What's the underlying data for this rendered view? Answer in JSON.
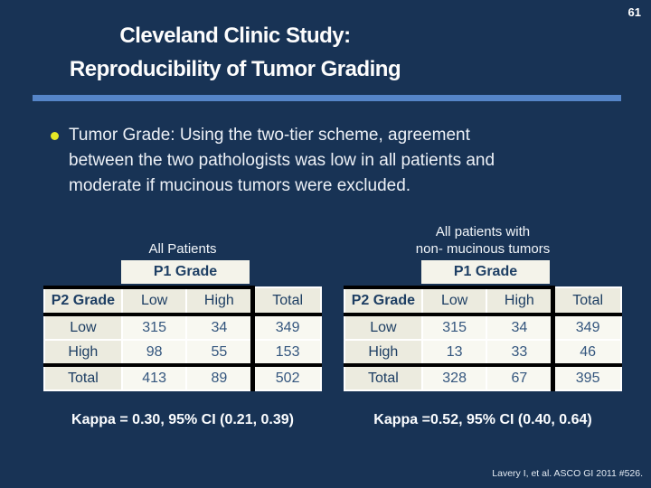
{
  "slide": {
    "page_number": "61",
    "title_lines": [
      "Cleveland Clinic Study:",
      "Reproducibility of Tumor Grading"
    ],
    "bullet_lines": [
      "Tumor Grade: Using the two-tier scheme, agreement",
      "between the two pathologists was low in all patients and",
      "moderate if mucinous tumors were excluded."
    ],
    "citation": "Lavery I, et al. ASCO GI 2011 #526."
  },
  "colors": {
    "background": "#183355",
    "accent_bar": "#5585c8",
    "bullet_dot": "#e5e926",
    "body_text": "#edf1f7",
    "cell_label_bg": "#ecebdf",
    "cell_data_bg": "#f8f8f1",
    "span_cell_bg": "#f4f3ea",
    "table_text": "#1d3e63",
    "table_number_text": "#34567e",
    "border_black": "#000000",
    "cell_border_white": "#ffffff"
  },
  "tables": [
    {
      "title_lines": [
        "All Patients"
      ],
      "span_header": "P1 Grade",
      "columns": [
        "P2 Grade",
        "Low",
        "High",
        "Total"
      ],
      "rows": [
        {
          "label": "Low",
          "low": "315",
          "high": "34",
          "total": "349"
        },
        {
          "label": "High",
          "low": "98",
          "high": "55",
          "total": "153"
        },
        {
          "label": "Total",
          "low": "413",
          "high": "89",
          "total": "502"
        }
      ],
      "kappa": "Kappa = 0.30, 95% CI (0.21, 0.39)"
    },
    {
      "title_lines": [
        "All patients with",
        "non- mucinous tumors"
      ],
      "span_header": "P1 Grade",
      "columns": [
        "P2 Grade",
        "Low",
        "High",
        "Total"
      ],
      "rows": [
        {
          "label": "Low",
          "low": "315",
          "high": "34",
          "total": "349"
        },
        {
          "label": "High",
          "low": "13",
          "high": "33",
          "total": "46"
        },
        {
          "label": "Total",
          "low": "328",
          "high": "67",
          "total": "395"
        }
      ],
      "kappa": "Kappa =0.52, 95% CI (0.40, 0.64)"
    }
  ]
}
